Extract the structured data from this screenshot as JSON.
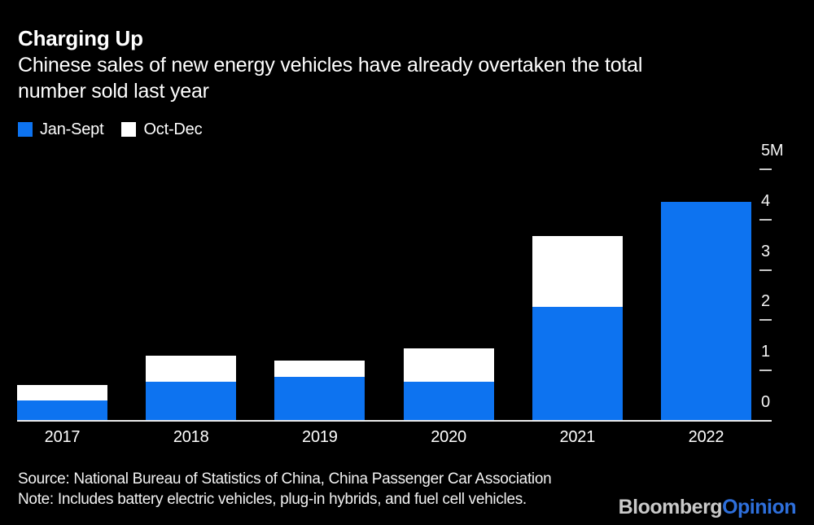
{
  "header": {
    "title": "Charging Up",
    "subtitle_line1": "Chinese sales of new energy vehicles have already overtaken the total",
    "subtitle_line2": "number sold last year"
  },
  "chart_data": {
    "type": "bar",
    "stacked": true,
    "title": "Charging Up",
    "subtitle": "Chinese sales of new energy vehicles have already overtaken the total number sold last year",
    "unit": "millions of vehicles",
    "categories": [
      "2017",
      "2018",
      "2019",
      "2020",
      "2021",
      "2022"
    ],
    "series": [
      {
        "name": "Jan-Sept",
        "color": "#0d73f0",
        "values": [
          0.4,
          0.78,
          0.87,
          0.77,
          2.27,
          4.35
        ]
      },
      {
        "name": "Oct-Dec",
        "color": "#ffffff",
        "values": [
          0.31,
          0.52,
          0.33,
          0.67,
          1.4,
          0
        ]
      }
    ],
    "ylim": [
      0,
      5
    ],
    "yticks": [
      0,
      1,
      2,
      3,
      4,
      5
    ],
    "ytick_labels": [
      "0",
      "1",
      "2",
      "3",
      "4",
      "5M"
    ],
    "y_axis_side": "right",
    "legend_position": "top-left",
    "grid": false
  },
  "footer": {
    "source": "Source: National Bureau of Statistics of China, China Passenger Car Association",
    "note": "Note: Includes battery electric vehicles, plug-in hybrids, and fuel cell vehicles.",
    "logo": {
      "part1": "Bloomberg",
      "part2": "Opinion"
    }
  },
  "colors": {
    "background": "#000000",
    "bar_blue": "#0d73f0",
    "bar_white": "#ffffff",
    "axis_text": "#f5f5f5",
    "tick_dash": "#c9c9c9",
    "baseline": "#ebebeb",
    "logo_gray": "#c9c9c9",
    "logo_blue": "#2e6fdb"
  }
}
